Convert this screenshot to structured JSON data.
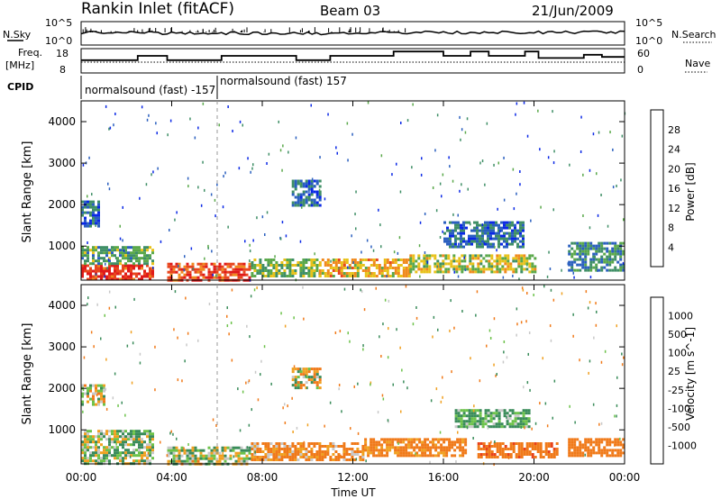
{
  "header": {
    "title": "Rankin Inlet (fitACF)",
    "beam": "Beam 03",
    "date": "21/Jun/2009"
  },
  "panels": {
    "nsky_label": "N.Sky",
    "nsky_ticks": [
      "10^5",
      "10^0"
    ],
    "nsearch_label": "N.Search",
    "freq_label": "Freq.",
    "freq_unit": "[MHz]",
    "freq_ticks": [
      "18",
      "8"
    ],
    "nave_label": "Nave",
    "nave_ticks": [
      "60",
      "0"
    ],
    "cpid_label": "CPID",
    "cpid_modes": [
      {
        "text": "normalsound (fast)  -157",
        "start_hour": 0
      },
      {
        "text": "normalsound (fast)  157",
        "start_hour": 6
      }
    ]
  },
  "axes": {
    "ylabel": "Slant Range [km]",
    "xlabel": "Time UT",
    "x_ticks": [
      "00:00",
      "04:00",
      "08:00",
      "12:00",
      "16:00",
      "20:00",
      "00:00"
    ],
    "y_ticks": [
      "1000",
      "2000",
      "3000",
      "4000"
    ]
  },
  "colorbars": {
    "power": {
      "label": "Power [dB]",
      "ticks": [
        "4",
        "8",
        "12",
        "16",
        "20",
        "24",
        "28"
      ],
      "colors": [
        "#0a28e6",
        "#2a5fbf",
        "#3f8f66",
        "#5aa84a",
        "#e8c21a",
        "#f08a1e",
        "#e8461e",
        "#e01a1a"
      ]
    },
    "velocity": {
      "label": "Velocity [m s^-1]",
      "ticks": [
        "1000",
        "500",
        "100",
        "25",
        "-25",
        "-100",
        "-500",
        "-1000"
      ],
      "colors": [
        "#1a34c8",
        "#2e6fb0",
        "#3a8c5a",
        "#6cc24a",
        "#c8c8c8",
        "#f0a020",
        "#f07a1a",
        "#e8421a",
        "#e01a1a"
      ]
    }
  },
  "chart_data": [
    {
      "type": "heatmap",
      "title": "Power",
      "xlabel": "Time UT",
      "ylabel": "Slant Range [km]",
      "xlim_hours": [
        0,
        24
      ],
      "ylim_km": [
        180,
        4500
      ],
      "colorbar_label": "Power [dB]",
      "colorbar_range": [
        0,
        30
      ],
      "regions": [
        {
          "t0": 0.0,
          "t1": 3.2,
          "r0": 180,
          "r1": 560,
          "value": 28
        },
        {
          "t0": 0.0,
          "t1": 3.2,
          "r0": 560,
          "r1": 1000,
          "value": 12
        },
        {
          "t0": 0.0,
          "t1": 0.8,
          "r0": 1500,
          "r1": 2100,
          "value": 6
        },
        {
          "t0": 3.8,
          "t1": 7.5,
          "r0": 180,
          "r1": 600,
          "value": 27
        },
        {
          "t0": 7.5,
          "t1": 10.5,
          "r0": 250,
          "r1": 700,
          "value": 14
        },
        {
          "t0": 9.3,
          "t1": 10.5,
          "r0": 2000,
          "r1": 2600,
          "value": 7
        },
        {
          "t0": 10.5,
          "t1": 14.5,
          "r0": 300,
          "r1": 700,
          "value": 20
        },
        {
          "t0": 14.5,
          "t1": 20.0,
          "r0": 350,
          "r1": 800,
          "value": 16
        },
        {
          "t0": 16.0,
          "t1": 19.5,
          "r0": 1000,
          "r1": 1600,
          "value": 7
        },
        {
          "t0": 21.5,
          "t1": 24.0,
          "r0": 400,
          "r1": 1100,
          "value": 10
        }
      ]
    },
    {
      "type": "heatmap",
      "title": "Velocity",
      "xlabel": "Time UT",
      "ylabel": "Slant Range [km]",
      "xlim_hours": [
        0,
        24
      ],
      "ylim_km": [
        180,
        4500
      ],
      "colorbar_label": "Velocity [m s^-1]",
      "colorbar_range": [
        -1000,
        1000
      ],
      "regions": [
        {
          "t0": 0.0,
          "t1": 3.2,
          "r0": 180,
          "r1": 1000,
          "value": 60
        },
        {
          "t0": 0.0,
          "t1": 1.0,
          "r0": 1600,
          "r1": 2100,
          "value": 0
        },
        {
          "t0": 3.8,
          "t1": 7.5,
          "r0": 180,
          "r1": 600,
          "value": 40
        },
        {
          "t0": 7.5,
          "t1": 12.5,
          "r0": 250,
          "r1": 700,
          "value": -150
        },
        {
          "t0": 9.3,
          "t1": 10.5,
          "r0": 2000,
          "r1": 2500,
          "value": 0
        },
        {
          "t0": 12.5,
          "t1": 17.0,
          "r0": 350,
          "r1": 800,
          "value": -200
        },
        {
          "t0": 16.5,
          "t1": 19.8,
          "r0": 1100,
          "r1": 1500,
          "value": 150
        },
        {
          "t0": 17.5,
          "t1": 21.0,
          "r0": 350,
          "r1": 700,
          "value": -400
        },
        {
          "t0": 21.5,
          "t1": 24.0,
          "r0": 350,
          "r1": 800,
          "value": -300
        }
      ]
    }
  ]
}
